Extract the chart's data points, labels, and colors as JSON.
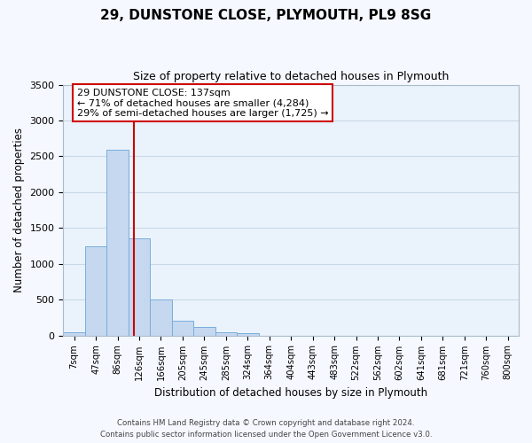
{
  "title": "29, DUNSTONE CLOSE, PLYMOUTH, PL9 8SG",
  "subtitle": "Size of property relative to detached houses in Plymouth",
  "xlabel": "Distribution of detached houses by size in Plymouth",
  "ylabel": "Number of detached properties",
  "bar_labels": [
    "7sqm",
    "47sqm",
    "86sqm",
    "126sqm",
    "166sqm",
    "205sqm",
    "245sqm",
    "285sqm",
    "324sqm",
    "364sqm",
    "404sqm",
    "443sqm",
    "483sqm",
    "522sqm",
    "562sqm",
    "602sqm",
    "641sqm",
    "681sqm",
    "721sqm",
    "760sqm",
    "800sqm"
  ],
  "bar_values": [
    50,
    1240,
    2590,
    1350,
    500,
    205,
    115,
    50,
    30,
    0,
    0,
    0,
    0,
    0,
    0,
    0,
    0,
    0,
    0,
    0,
    0
  ],
  "bar_color": "#c5d8f0",
  "bar_edge_color": "#7aaddb",
  "grid_color": "#c8d8e8",
  "bg_color": "#eaf3fb",
  "fig_bg_color": "#f5f8ff",
  "vline_color": "#cc0000",
  "annotation_title": "29 DUNSTONE CLOSE: 137sqm",
  "annotation_line1": "← 71% of detached houses are smaller (4,284)",
  "annotation_line2": "29% of semi-detached houses are larger (1,725) →",
  "annotation_box_color": "#ffffff",
  "annotation_border_color": "#cc0000",
  "ylim": [
    0,
    3500
  ],
  "yticks": [
    0,
    500,
    1000,
    1500,
    2000,
    2500,
    3000,
    3500
  ],
  "footer1": "Contains HM Land Registry data © Crown copyright and database right 2024.",
  "footer2": "Contains public sector information licensed under the Open Government Licence v3.0."
}
